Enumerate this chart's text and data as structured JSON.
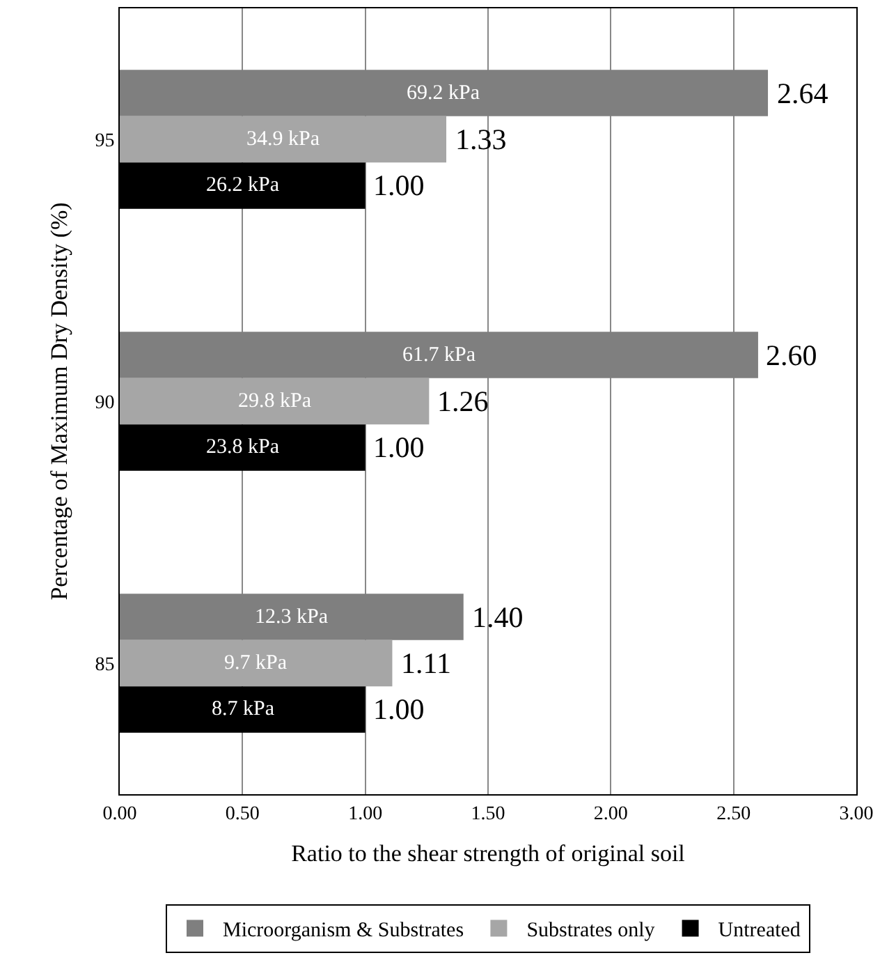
{
  "chart_data": {
    "type": "bar",
    "orientation": "horizontal",
    "xlabel": "Ratio to the shear strength of original soil",
    "ylabel": "Percentage of Maximum Dry Density (%)",
    "categories": [
      "95",
      "90",
      "85"
    ],
    "series": [
      {
        "name": "Microorganism & Substrates",
        "color": "#7f7f7f",
        "values": [
          2.64,
          2.6,
          1.4
        ],
        "value_labels": [
          "2.64",
          "2.60",
          "1.40"
        ]
      },
      {
        "name": "Substrates only",
        "color": "#a6a6a6",
        "values": [
          1.33,
          1.26,
          1.11
        ],
        "value_labels": [
          "1.33",
          "1.26",
          "1.11"
        ]
      },
      {
        "name": "Untreated",
        "color": "#000000",
        "values": [
          1.0,
          1.0,
          1.0
        ],
        "value_labels": [
          "1.00",
          "1.00",
          "1.00"
        ]
      }
    ],
    "annotations": [
      "69.2 kPa",
      "61.7 kPa",
      "12.3 kPa",
      "34.9 kPa",
      "29.8 kPa",
      "9.7 kPa",
      "26.2 kPa",
      "23.8 kPa",
      "8.7 kPa"
    ],
    "xlim": [
      0,
      3
    ],
    "xticks": [
      {
        "value": 0,
        "label": "0.00"
      },
      {
        "value": 0.5,
        "label": "0.50"
      },
      {
        "value": 1,
        "label": "1.00"
      },
      {
        "value": 1.5,
        "label": "1.50"
      },
      {
        "value": 2,
        "label": "2.00"
      },
      {
        "value": 2.5,
        "label": "2.50"
      },
      {
        "value": 3,
        "label": "3.00"
      }
    ],
    "grid": "x",
    "legend": "bottom"
  }
}
